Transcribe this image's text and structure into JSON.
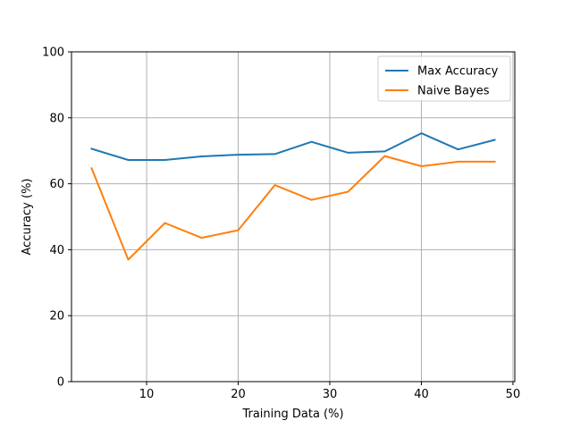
{
  "chart_data": {
    "type": "line",
    "title": "",
    "xlabel": "Training Data (%)",
    "ylabel": "Accuracy (%)",
    "xlim": [
      1.8,
      50.2
    ],
    "ylim": [
      0,
      100
    ],
    "xticks": [
      10,
      20,
      30,
      40,
      50
    ],
    "yticks": [
      0,
      20,
      40,
      60,
      80,
      100
    ],
    "grid": true,
    "legend_position": "top-right",
    "x": [
      4,
      8,
      12,
      16,
      20,
      24,
      28,
      32,
      36,
      40,
      44,
      48
    ],
    "series": [
      {
        "name": "Max Accuracy",
        "color": "#1f77b4",
        "values": [
          70.6,
          67.2,
          67.2,
          68.3,
          68.8,
          69.0,
          72.7,
          69.4,
          69.8,
          75.3,
          70.4,
          73.3
        ]
      },
      {
        "name": "Naive Bayes",
        "color": "#ff7f0e",
        "values": [
          64.7,
          37.0,
          48.1,
          43.6,
          45.9,
          59.6,
          55.1,
          57.6,
          68.4,
          65.3,
          66.7,
          66.7
        ]
      }
    ]
  }
}
